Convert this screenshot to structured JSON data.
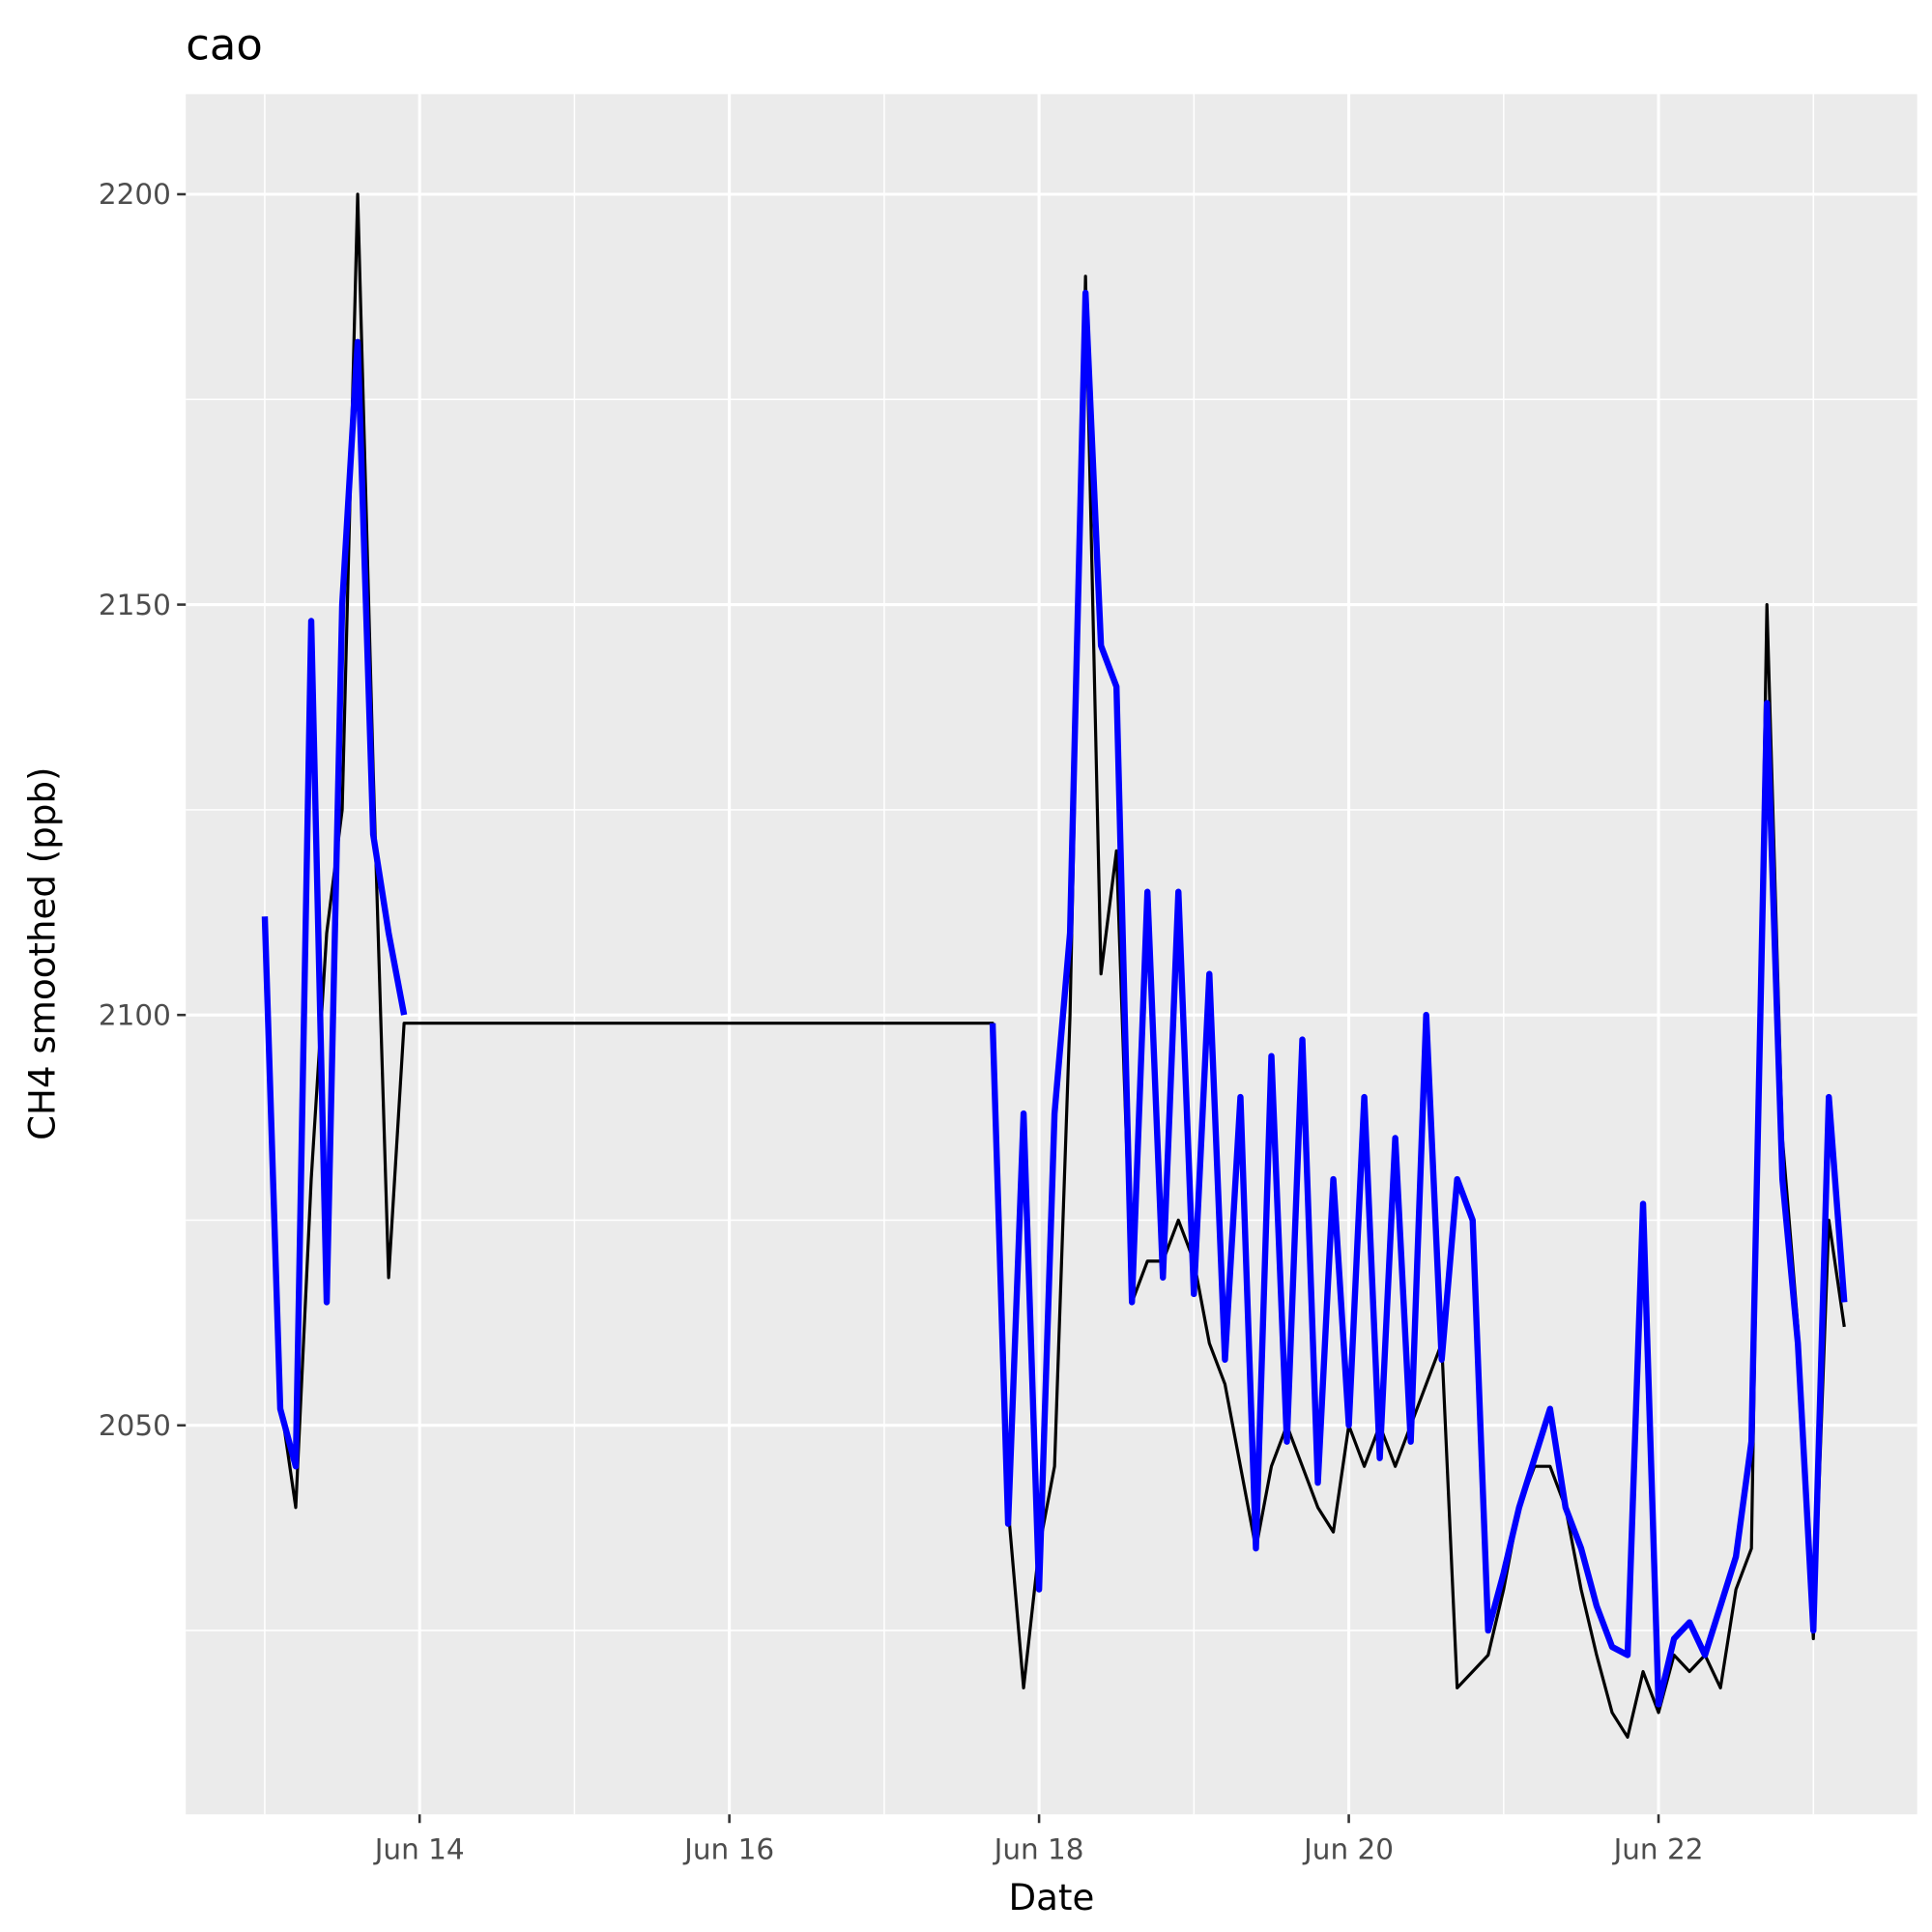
{
  "chart_data": {
    "type": "line",
    "title": "cao",
    "x_label": "Date",
    "y_label": "CH4 smoothed (ppb)",
    "x": [
      13.0,
      13.1,
      13.2,
      13.3,
      13.4,
      13.5,
      13.6,
      13.7,
      13.8,
      13.9,
      13.95,
      17.7,
      17.8,
      17.9,
      18.0,
      18.1,
      18.2,
      18.3,
      18.4,
      18.5,
      18.6,
      18.7,
      18.8,
      18.9,
      19.0,
      19.1,
      19.2,
      19.3,
      19.4,
      19.5,
      19.6,
      19.7,
      19.8,
      19.9,
      20.0,
      20.1,
      20.2,
      20.3,
      20.4,
      20.5,
      20.6,
      20.7,
      20.8,
      20.9,
      21.0,
      21.1,
      21.2,
      21.3,
      21.4,
      21.5,
      21.6,
      21.7,
      21.8,
      21.9,
      22.0,
      22.1,
      22.2,
      22.3,
      22.4,
      22.5,
      22.6,
      22.7,
      22.8,
      22.9,
      23.0,
      23.1,
      23.2
    ],
    "series": [
      {
        "color": "#000000",
        "values": [
          2110,
          2053,
          2040,
          2080,
          2110,
          2125,
          2200,
          2130,
          2068,
          2099,
          2099,
          2099,
          2040,
          2018,
          2035,
          2045,
          2100,
          2190,
          2105,
          2120,
          2065,
          2070,
          2070,
          2075,
          2070,
          2060,
          2055,
          2045,
          2035,
          2045,
          2050,
          2045,
          2040,
          2037,
          2050,
          2045,
          2050,
          2045,
          2050,
          2055,
          2060,
          2018,
          2020,
          2022,
          2030,
          2040,
          2045,
          2045,
          2040,
          2030,
          2022,
          2015,
          2012,
          2020,
          2015,
          2022,
          2020,
          2022,
          2018,
          2030,
          2035,
          2150,
          2085,
          2062,
          2024,
          2075,
          2062
        ]
      },
      {
        "color": "#0000ff",
        "values": [
          2112,
          2052,
          2045,
          2148,
          2065,
          2150,
          2182,
          2122,
          2110,
          2100,
          null,
          2099,
          2038,
          2088,
          2030,
          2088,
          2110,
          2188,
          2145,
          2140,
          2065,
          2115,
          2068,
          2115,
          2066,
          2105,
          2058,
          2090,
          2035,
          2095,
          2048,
          2097,
          2043,
          2080,
          2050,
          2090,
          2046,
          2085,
          2048,
          2100,
          2058,
          2080,
          2075,
          2025,
          2032,
          2040,
          2046,
          2052,
          2040,
          2035,
          2028,
          2023,
          2022,
          2077,
          2016,
          2024,
          2026,
          2022,
          2028,
          2034,
          2048,
          2138,
          2080,
          2060,
          2025,
          2090,
          2065
        ]
      }
    ],
    "xlim": [
      12.49,
      23.67
    ],
    "ylim": [
      2002.6,
      2212.2
    ],
    "xticks": [
      {
        "value": 14,
        "label": "Jun 14"
      },
      {
        "value": 16,
        "label": "Jun 16"
      },
      {
        "value": 18,
        "label": "Jun 18"
      },
      {
        "value": 20,
        "label": "Jun 20"
      },
      {
        "value": 22,
        "label": "Jun 22"
      }
    ],
    "yticks": [
      2050,
      2100,
      2150,
      2200
    ],
    "grid": true
  }
}
